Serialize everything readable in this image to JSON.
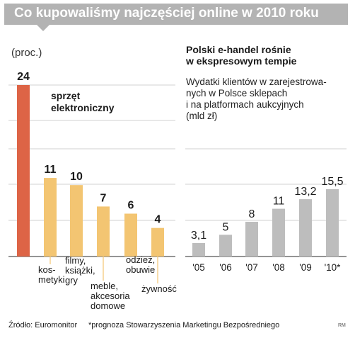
{
  "header": {
    "title": "Co kupowaliśmy najczęściej online w 2010 roku"
  },
  "colors": {
    "accent": "#dd6446",
    "bar": "#f3c572",
    "bar_right": "#bdbdbd",
    "grid": "#d0d0d0",
    "title_bg": "#b3b3b3"
  },
  "chart_data": [
    {
      "type": "bar",
      "unit": "(proc.)",
      "categories": [
        "sprzęt\nelektroniczny",
        "kos-\nmetyki",
        "filmy,\nksiążki,\ngry",
        "meble,\nakcesoria\ndomowe",
        "odzież,\nobuwie",
        "żywność"
      ],
      "values": [
        24,
        11,
        10,
        7,
        6,
        4
      ],
      "value_labels": [
        "24",
        "11",
        "10",
        "7",
        "6",
        "4"
      ],
      "highlight_index": 0
    },
    {
      "type": "bar",
      "title": "Polski e-handel rośnie\nw ekspresowym tempie",
      "subtitle": "Wydatki klientów w zarejestrowa-\nnych w Polsce sklepach\ni na platformach aukcyjnych\n(mld zł)",
      "categories": [
        "'05",
        "'06",
        "'07",
        "'08",
        "'09",
        "'10*"
      ],
      "values": [
        3.1,
        5,
        8,
        11,
        13.2,
        15.5
      ],
      "value_labels": [
        "3,1",
        "5",
        "8",
        "11",
        "13,2",
        "15,5"
      ]
    }
  ],
  "footer": {
    "source": "Źródło: Euromonitor",
    "note": "*prognoza Stowarzyszenia Marketingu Bezpośredniego",
    "credit": "RM"
  }
}
